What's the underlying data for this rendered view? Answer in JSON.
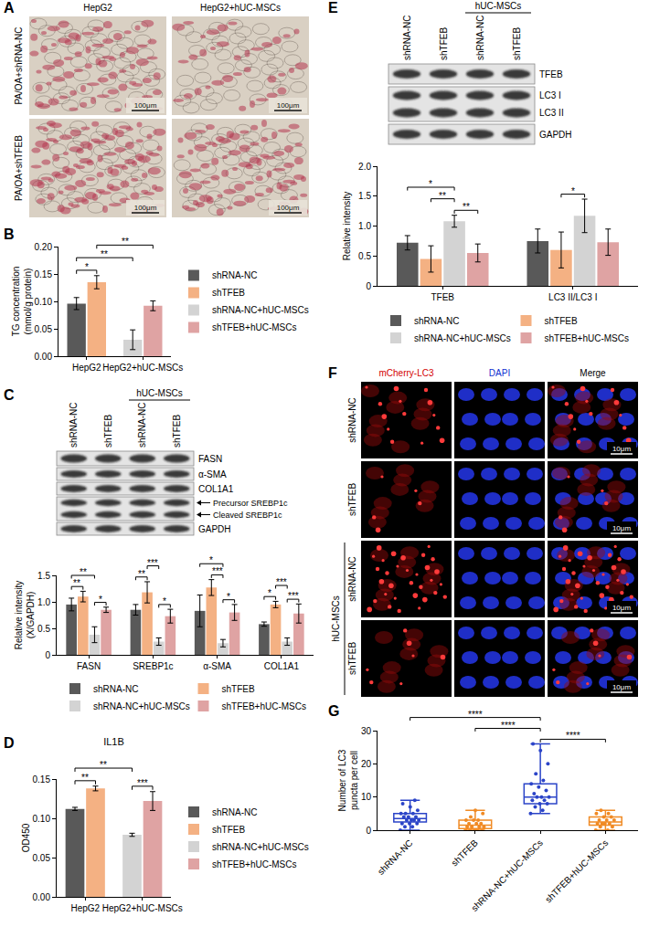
{
  "images": [
    {
      "kind": "micrographs",
      "letter": "A",
      "columns": [
        "HepG2",
        "HepG2+hUC-MSCs"
      ],
      "rows": [
        "PA/OA+shRNA-NC",
        "PA/OA+shTFEB"
      ],
      "scale_bar": "100μm"
    },
    {
      "kind": "blot",
      "lanes": [
        "shRNA-NC",
        "shTFEB",
        "shRNA-NC",
        "shTFEB"
      ],
      "group": {
        "label": "hUC-MSCs",
        "lanes": [
          2,
          3
        ]
      },
      "rows": [
        {
          "labels": [
            "FASN"
          ]
        },
        {
          "labels": [
            "α-SMA"
          ]
        },
        {
          "labels": [
            "COL1A1"
          ]
        },
        {
          "labels": [
            "Precursor SREBP1c",
            "Cleaved SREBP1c"
          ],
          "arrows": true
        },
        {
          "labels": [
            "GAPDH"
          ]
        }
      ]
    },
    {
      "kind": "blot",
      "lanes": [
        "shRNA-NC",
        "shTFEB",
        "shRNA-NC",
        "shTFEB"
      ],
      "group": {
        "label": "hUC-MSCs",
        "lanes": [
          2,
          3
        ]
      },
      "rows": [
        {
          "labels": [
            "TFEB"
          ]
        },
        {
          "labels": [
            "LC3 I",
            "LC3 II"
          ]
        },
        {
          "labels": [
            "GAPDH"
          ]
        }
      ]
    },
    {
      "kind": "fluorescence",
      "letter": "F",
      "columns": [
        "mCherry-LC3",
        "DAPI",
        "Merge"
      ],
      "rows": [
        "shRNA-NC",
        "shTFEB",
        "shRNA-NC",
        "shTFEB"
      ],
      "group": {
        "label": "hUC-MSCs",
        "rows": [
          2,
          3
        ]
      },
      "scale_bar": "10μm"
    }
  ],
  "chart_data": [
    {
      "panel": "B",
      "type": "bar",
      "y_label": "TG concentration (mmol/g protein)",
      "categories": [
        "HepG2",
        "HepG2+hUC-MSCs"
      ],
      "series": [
        {
          "name": "shRNA-NC",
          "color": "#595959",
          "values": [
            0.096,
            null
          ],
          "errors": [
            0.011,
            null
          ]
        },
        {
          "name": "shTFEB",
          "color": "#F4B183",
          "values": [
            0.135,
            null
          ],
          "errors": [
            0.012,
            null
          ]
        },
        {
          "name": "shRNA-NC+hUC-MSCs",
          "color": "#D3D3D3",
          "values": [
            null,
            0.03
          ],
          "errors": [
            null,
            0.018
          ]
        },
        {
          "name": "shTFEB+hUC-MSCs",
          "color": "#DFA3A3",
          "values": [
            null,
            0.092
          ],
          "errors": [
            null,
            0.009
          ]
        }
      ],
      "ylim": [
        0,
        0.2
      ],
      "yticks": [
        {
          "value": 0,
          "label": "0.00"
        },
        {
          "value": 0.05,
          "label": "0.05"
        },
        {
          "value": 0.1,
          "label": "0.10"
        },
        {
          "value": 0.15,
          "label": "0.15"
        },
        {
          "value": 0.2,
          "label": "0.20"
        }
      ],
      "grid": false,
      "legend": "right",
      "significance": [
        {
          "from": [
            0,
            0
          ],
          "to": [
            0,
            1
          ],
          "label": "*"
        },
        {
          "from": [
            0,
            0
          ],
          "to": [
            1,
            2
          ],
          "label": "**"
        },
        {
          "from": [
            0,
            1
          ],
          "to": [
            1,
            3
          ],
          "label": "**"
        }
      ]
    },
    {
      "panel": "C",
      "type": "bar",
      "y_label": "Relative intensity (X/GAPDH)",
      "categories": [
        "FASN",
        "SREBP1c",
        "α-SMA",
        "COL1A1"
      ],
      "series": [
        {
          "name": "shRNA-NC",
          "color": "#595959",
          "values": [
            0.95,
            0.85,
            0.83,
            0.58
          ],
          "errors": [
            0.12,
            0.1,
            0.3,
            0.04
          ]
        },
        {
          "name": "shTFEB",
          "color": "#F4B183",
          "values": [
            1.1,
            1.18,
            1.27,
            0.95
          ],
          "errors": [
            0.1,
            0.2,
            0.15,
            0.06
          ]
        },
        {
          "name": "shRNA-NC+hUC-MSCs",
          "color": "#D3D3D3",
          "values": [
            0.38,
            0.25,
            0.22,
            0.25
          ],
          "errors": [
            0.15,
            0.07,
            0.07,
            0.07
          ]
        },
        {
          "name": "shTFEB+hUC-MSCs",
          "color": "#DFA3A3",
          "values": [
            0.85,
            0.73,
            0.8,
            0.78
          ],
          "errors": [
            0.05,
            0.13,
            0.15,
            0.18
          ]
        }
      ],
      "ylim": [
        0,
        1.5
      ],
      "yticks": [
        0,
        0.5,
        {
          "value": 1,
          "label": "1.0"
        },
        1.5
      ],
      "grid": false,
      "legend": "bottom",
      "significance": [
        {
          "from": [
            0,
            2
          ],
          "to": [
            0,
            3
          ],
          "label": "*"
        },
        {
          "from": [
            0,
            0
          ],
          "to": [
            0,
            1
          ],
          "label": "**"
        },
        {
          "from": [
            0,
            0
          ],
          "to": [
            0,
            2
          ],
          "label": "**"
        },
        {
          "from": [
            1,
            2
          ],
          "to": [
            1,
            3
          ],
          "label": "*"
        },
        {
          "from": [
            1,
            0
          ],
          "to": [
            1,
            1
          ],
          "label": "**"
        },
        {
          "from": [
            1,
            1
          ],
          "to": [
            1,
            2
          ],
          "label": "***"
        },
        {
          "from": [
            2,
            2
          ],
          "to": [
            2,
            3
          ],
          "label": "*"
        },
        {
          "from": [
            2,
            1
          ],
          "to": [
            2,
            2
          ],
          "label": "***"
        },
        {
          "from": [
            2,
            0
          ],
          "to": [
            2,
            2
          ],
          "label": "*"
        },
        {
          "from": [
            3,
            2
          ],
          "to": [
            3,
            3
          ],
          "label": "***"
        },
        {
          "from": [
            3,
            0
          ],
          "to": [
            3,
            1
          ],
          "label": "*"
        },
        {
          "from": [
            3,
            1
          ],
          "to": [
            3,
            2
          ],
          "label": "***"
        }
      ]
    },
    {
      "panel": "D",
      "type": "bar",
      "title": "IL1B",
      "y_label": "OD450",
      "categories": [
        "HepG2",
        "HepG2+hUC-MSCs"
      ],
      "series": [
        {
          "name": "shRNA-NC",
          "color": "#595959",
          "values": [
            0.112,
            null
          ],
          "errors": [
            0.002,
            null
          ]
        },
        {
          "name": "shTFEB",
          "color": "#F4B183",
          "values": [
            0.138,
            null
          ],
          "errors": [
            0.003,
            null
          ]
        },
        {
          "name": "shRNA-NC+hUC-MSCs",
          "color": "#D3D3D3",
          "values": [
            null,
            0.079
          ],
          "errors": [
            null,
            0.002
          ]
        },
        {
          "name": "shTFEB+hUC-MSCs",
          "color": "#DFA3A3",
          "values": [
            null,
            0.122
          ],
          "errors": [
            null,
            0.012
          ]
        }
      ],
      "ylim": [
        0,
        0.15
      ],
      "yticks": [
        {
          "value": 0,
          "label": "0.00"
        },
        {
          "value": 0.05,
          "label": "0.05"
        },
        {
          "value": 0.1,
          "label": "0.10"
        },
        {
          "value": 0.15,
          "label": "0.15"
        }
      ],
      "grid": false,
      "legend": "right",
      "significance": [
        {
          "from": [
            0,
            0
          ],
          "to": [
            0,
            1
          ],
          "label": "**"
        },
        {
          "from": [
            1,
            2
          ],
          "to": [
            1,
            3
          ],
          "label": "***"
        },
        {
          "from": [
            0,
            0
          ],
          "to": [
            1,
            2
          ],
          "label": "**"
        }
      ]
    },
    {
      "panel": "E",
      "type": "bar",
      "y_label": "Relative intensity",
      "categories": [
        "TFEB",
        "LC3 II/LC3 I"
      ],
      "series": [
        {
          "name": "shRNA-NC",
          "color": "#595959",
          "values": [
            0.72,
            0.75
          ],
          "errors": [
            0.12,
            0.2
          ]
        },
        {
          "name": "shTFEB",
          "color": "#F4B183",
          "values": [
            0.45,
            0.6
          ],
          "errors": [
            0.22,
            0.3
          ]
        },
        {
          "name": "shRNA-NC+hUC-MSCs",
          "color": "#D3D3D3",
          "values": [
            1.08,
            1.17
          ],
          "errors": [
            0.1,
            0.28
          ]
        },
        {
          "name": "shTFEB+hUC-MSCs",
          "color": "#DFA3A3",
          "values": [
            0.55,
            0.73
          ],
          "errors": [
            0.15,
            0.22
          ]
        }
      ],
      "ylim": [
        0,
        2
      ],
      "yticks": [
        0,
        0.5,
        {
          "value": 1,
          "label": "1.0"
        },
        1.5,
        {
          "value": 2,
          "label": "2.0"
        }
      ],
      "grid": false,
      "legend": "bottom",
      "significance": [
        {
          "from": [
            0,
            2
          ],
          "to": [
            0,
            3
          ],
          "label": "**"
        },
        {
          "from": [
            0,
            1
          ],
          "to": [
            0,
            2
          ],
          "label": "**"
        },
        {
          "from": [
            0,
            0
          ],
          "to": [
            0,
            2
          ],
          "label": "*"
        },
        {
          "from": [
            1,
            1
          ],
          "to": [
            1,
            2
          ],
          "label": "*"
        }
      ]
    },
    {
      "panel": "G",
      "type": "box",
      "y_label": "Number of LC3 puncta per cell",
      "categories": [
        "shRNA-NC",
        "shTFEB",
        "shRNA-NC+hUC-MSCs",
        "shTFEB+hUC-MSCs"
      ],
      "colors": [
        "#2B44C8",
        "#F08A24",
        "#2B44C8",
        "#F08A24"
      ],
      "boxes": [
        {
          "min": 0,
          "q1": 2.5,
          "median": 3.5,
          "q3": 5,
          "max": 9,
          "points": [
            0,
            1,
            1,
            2,
            2,
            2,
            3,
            3,
            3,
            3,
            4,
            4,
            4,
            5,
            5,
            5,
            6,
            7,
            8,
            9
          ]
        },
        {
          "min": 0,
          "q1": 0.5,
          "median": 1.5,
          "q3": 3,
          "max": 6,
          "points": [
            0,
            0,
            0,
            0,
            0,
            1,
            1,
            1,
            1,
            2,
            2,
            2,
            3,
            3,
            3,
            4,
            5,
            6
          ]
        },
        {
          "min": 5,
          "q1": 8,
          "median": 10,
          "q3": 14,
          "max": 26,
          "points": [
            5,
            6,
            7,
            8,
            8,
            9,
            9,
            10,
            10,
            10,
            11,
            12,
            13,
            14,
            15,
            17,
            20,
            24,
            26
          ]
        },
        {
          "min": 0,
          "q1": 1.5,
          "median": 2.5,
          "q3": 4,
          "max": 6,
          "points": [
            0,
            0,
            1,
            1,
            2,
            2,
            2,
            2,
            3,
            3,
            3,
            4,
            4,
            5,
            5,
            6
          ]
        }
      ],
      "ylim": [
        0,
        30
      ],
      "yticks": [
        0,
        10,
        20,
        30
      ],
      "grid": false,
      "significance": [
        {
          "from": [
            2
          ],
          "to": [
            3
          ],
          "label": "****"
        },
        {
          "from": [
            1
          ],
          "to": [
            2
          ],
          "label": "****"
        },
        {
          "from": [
            0
          ],
          "to": [
            2
          ],
          "label": "****"
        }
      ]
    }
  ]
}
